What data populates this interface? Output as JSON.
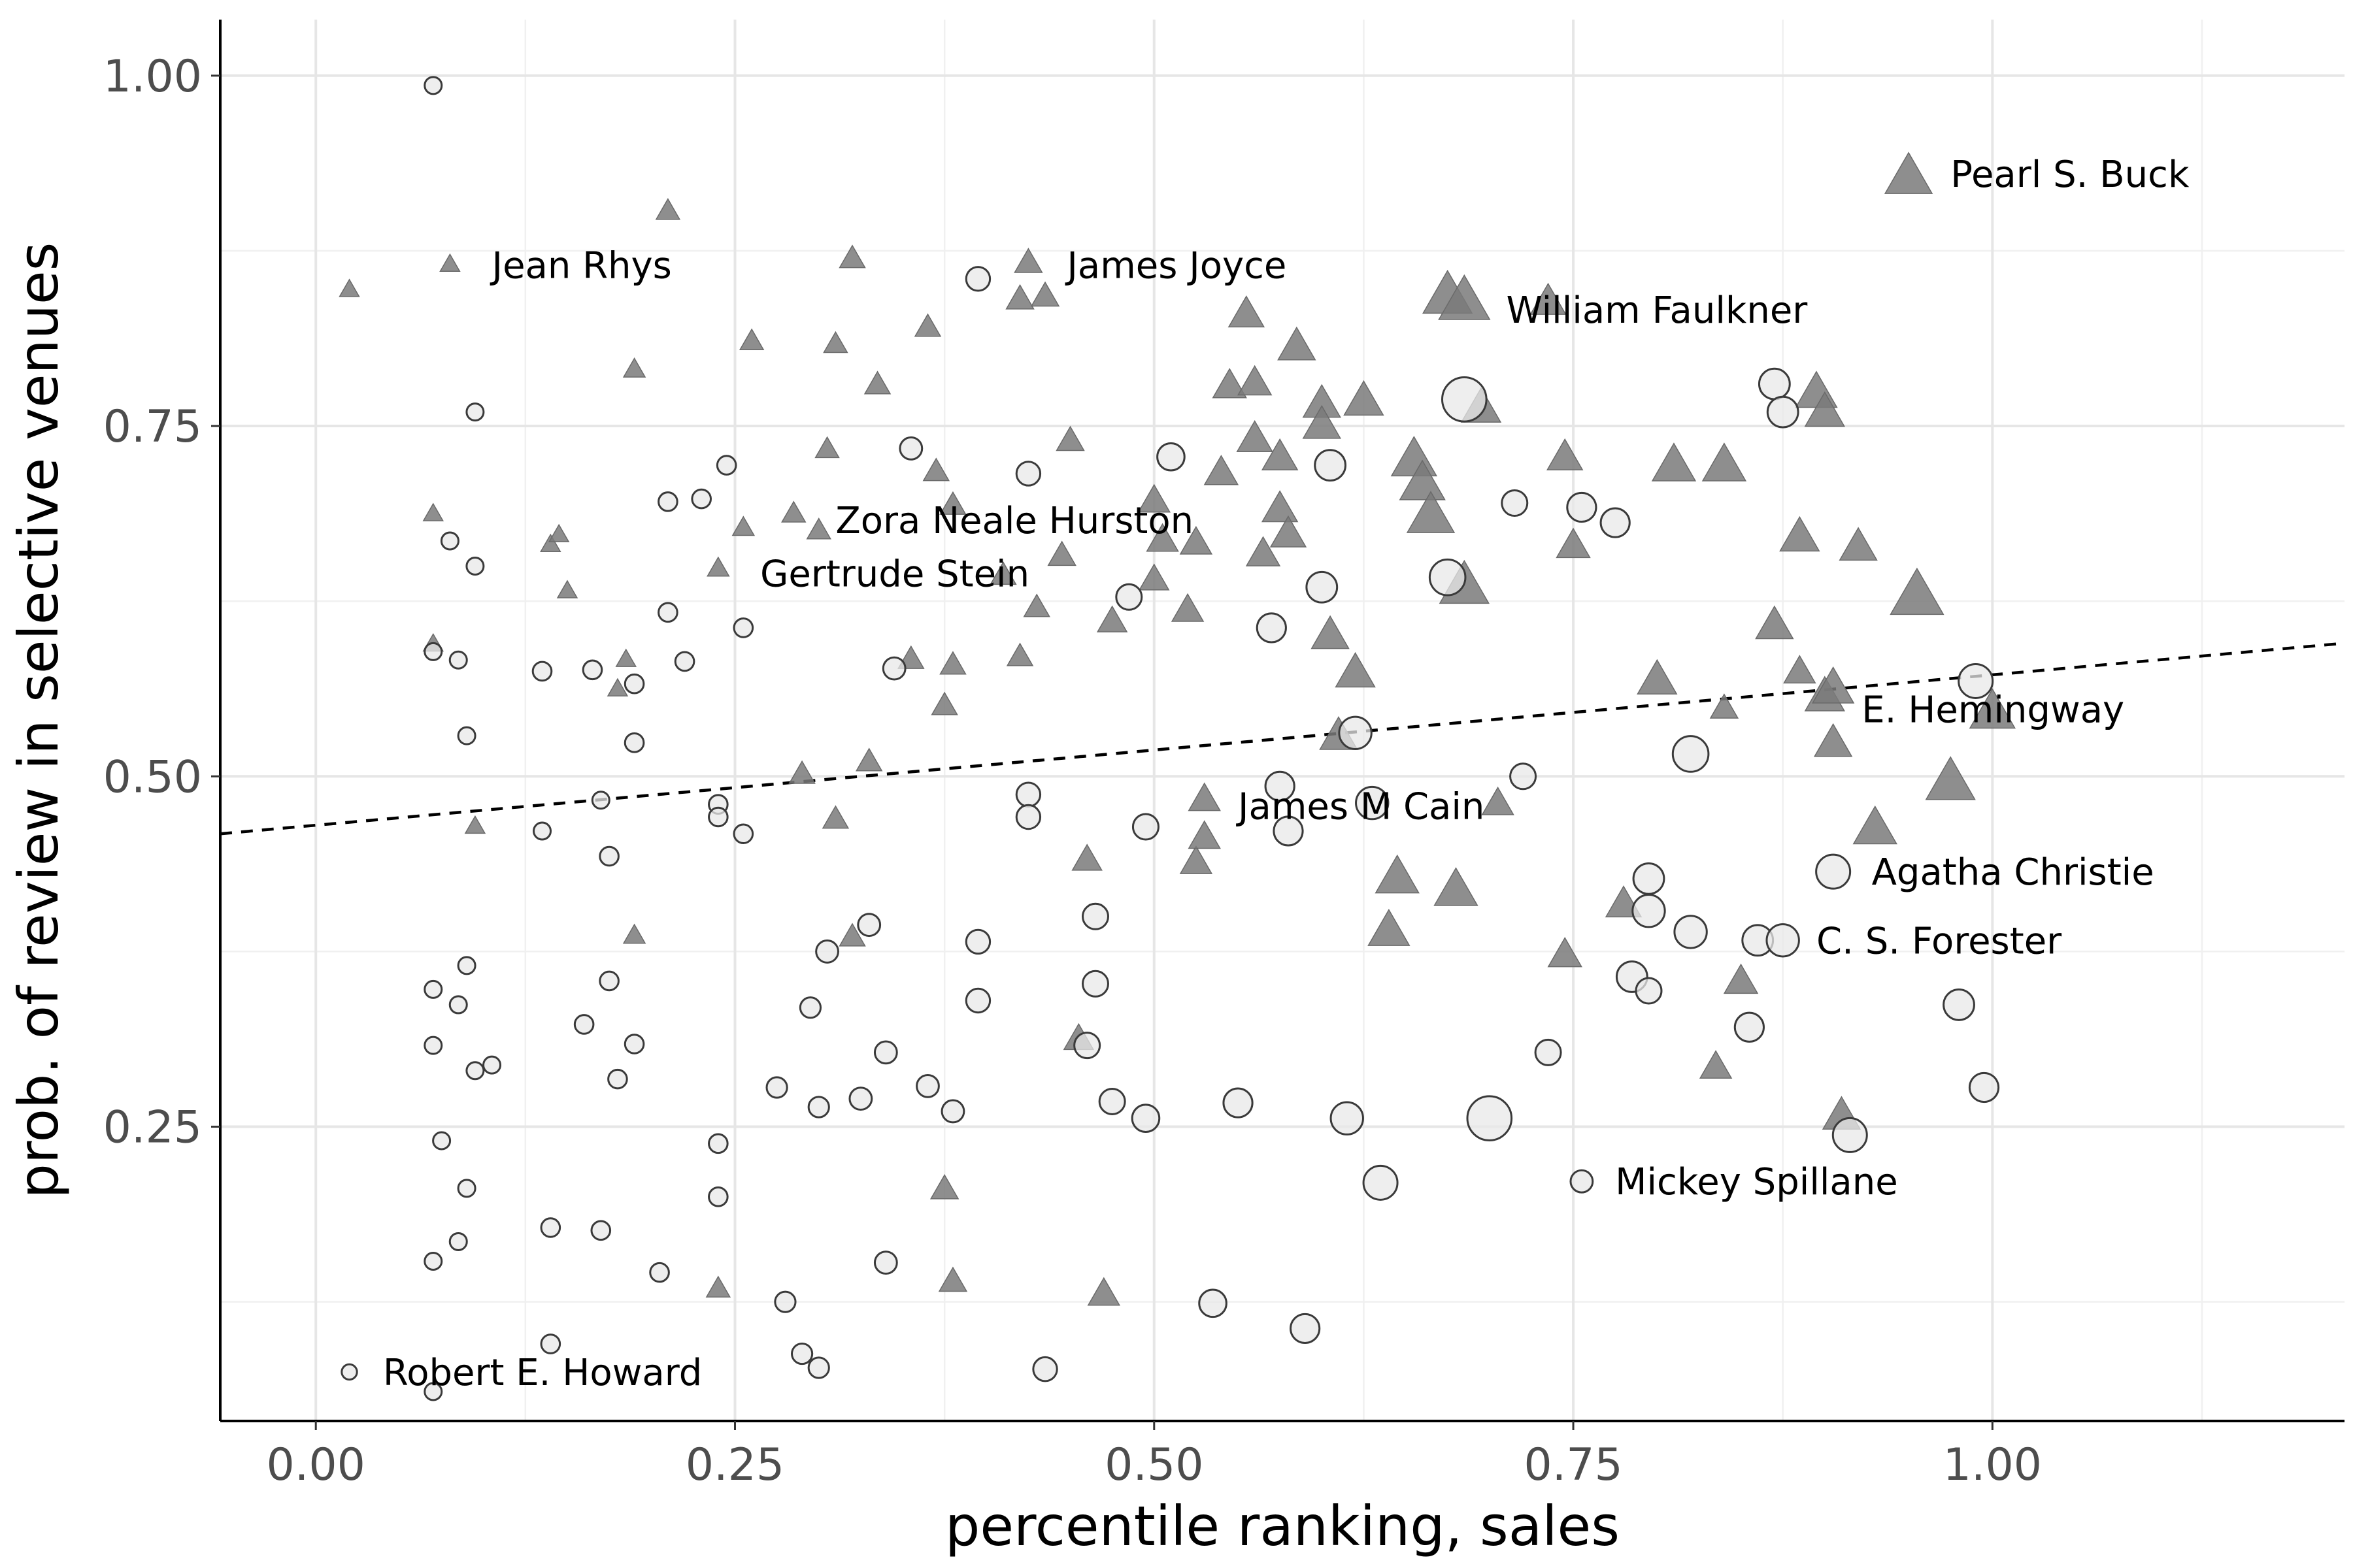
{
  "chart_data": {
    "type": "scatter",
    "title": "",
    "xlabel": "percentile ranking, sales",
    "ylabel": "prob. of review in selective venues",
    "xlim": [
      -0.057,
      1.21
    ],
    "ylim": [
      0.04,
      1.04
    ],
    "x_ticks": [
      0.0,
      0.25,
      0.5,
      0.75,
      1.0
    ],
    "x_tick_labels": [
      "0.00",
      "0.25",
      "0.50",
      "0.75",
      "1.00"
    ],
    "y_ticks": [
      0.25,
      0.5,
      0.75,
      1.0
    ],
    "y_tick_labels": [
      "0.25",
      "0.50",
      "0.75",
      "1.00"
    ],
    "grid": true,
    "legend": "none",
    "colors": {
      "triangle": "#7a7a7a",
      "circle": "#e8e8e8",
      "circle_stroke": "#3a3a3a",
      "trend": "#000000"
    },
    "trend_line": {
      "style": "dashed",
      "x": [
        -0.057,
        1.21
      ],
      "y": [
        0.459,
        0.595
      ]
    },
    "series": [
      {
        "marker": "triangle",
        "points": [
          [
            0.02,
            0.847,
            1
          ],
          [
            0.08,
            0.865,
            1
          ],
          [
            0.21,
            0.903,
            1.2
          ],
          [
            0.19,
            0.79,
            1.1
          ],
          [
            0.07,
            0.687,
            1
          ],
          [
            0.07,
            0.594,
            1
          ],
          [
            0.14,
            0.665,
            1
          ],
          [
            0.145,
            0.672,
            1
          ],
          [
            0.15,
            0.632,
            1
          ],
          [
            0.18,
            0.562,
            1
          ],
          [
            0.185,
            0.583,
            1
          ],
          [
            0.095,
            0.464,
            1
          ],
          [
            0.19,
            0.386,
            1.1
          ],
          [
            0.24,
            0.648,
            1.1
          ],
          [
            0.255,
            0.677,
            1.1
          ],
          [
            0.26,
            0.81,
            1.2
          ],
          [
            0.285,
            0.687,
            1.2
          ],
          [
            0.3,
            0.675,
            1.2
          ],
          [
            0.305,
            0.733,
            1.2
          ],
          [
            0.31,
            0.808,
            1.2
          ],
          [
            0.32,
            0.869,
            1.3
          ],
          [
            0.335,
            0.779,
            1.3
          ],
          [
            0.365,
            0.82,
            1.3
          ],
          [
            0.37,
            0.717,
            1.3
          ],
          [
            0.38,
            0.693,
            1.3
          ],
          [
            0.355,
            0.583,
            1.3
          ],
          [
            0.38,
            0.579,
            1.3
          ],
          [
            0.375,
            0.55,
            1.3
          ],
          [
            0.41,
            0.643,
            1.3
          ],
          [
            0.43,
            0.62,
            1.3
          ],
          [
            0.42,
            0.585,
            1.3
          ],
          [
            0.445,
            0.657,
            1.4
          ],
          [
            0.45,
            0.739,
            1.4
          ],
          [
            0.42,
            0.84,
            1.4
          ],
          [
            0.425,
            0.866,
            1.4
          ],
          [
            0.435,
            0.842,
            1.4
          ],
          [
            0.29,
            0.501,
            1.3
          ],
          [
            0.33,
            0.51,
            1.3
          ],
          [
            0.31,
            0.469,
            1.3
          ],
          [
            0.32,
            0.385,
            1.3
          ],
          [
            0.46,
            0.44,
            1.5
          ],
          [
            0.455,
            0.312,
            1.5
          ],
          [
            0.375,
            0.205,
            1.4
          ],
          [
            0.38,
            0.139,
            1.4
          ],
          [
            0.24,
            0.134,
            1.2
          ],
          [
            0.47,
            0.13,
            1.6
          ],
          [
            0.475,
            0.61,
            1.5
          ],
          [
            0.5,
            0.64,
            1.5
          ],
          [
            0.5,
            0.696,
            1.6
          ],
          [
            0.505,
            0.668,
            1.6
          ],
          [
            0.52,
            0.618,
            1.6
          ],
          [
            0.525,
            0.666,
            1.6
          ],
          [
            0.53,
            0.483,
            1.6
          ],
          [
            0.525,
            0.438,
            1.6
          ],
          [
            0.53,
            0.456,
            1.6
          ],
          [
            0.54,
            0.716,
            1.7
          ],
          [
            0.545,
            0.778,
            1.7
          ],
          [
            0.555,
            0.829,
            1.8
          ],
          [
            0.56,
            0.78,
            1.7
          ],
          [
            0.56,
            0.74,
            1.8
          ],
          [
            0.565,
            0.658,
            1.7
          ],
          [
            0.575,
            0.727,
            1.8
          ],
          [
            0.575,
            0.69,
            1.8
          ],
          [
            0.58,
            0.672,
            1.8
          ],
          [
            0.585,
            0.806,
            1.9
          ],
          [
            0.6,
            0.765,
            1.9
          ],
          [
            0.6,
            0.75,
            1.9
          ],
          [
            0.605,
            0.6,
            1.9
          ],
          [
            0.61,
            0.528,
            1.9
          ],
          [
            0.62,
            0.573,
            2
          ],
          [
            0.625,
            0.767,
            2
          ],
          [
            0.64,
            0.389,
            2.1
          ],
          [
            0.645,
            0.427,
            2.2
          ],
          [
            0.655,
            0.725,
            2.3
          ],
          [
            0.66,
            0.708,
            2.3
          ],
          [
            0.665,
            0.685,
            2.4
          ],
          [
            0.675,
            0.842,
            2.5
          ],
          [
            0.685,
            0.838,
            2.6
          ],
          [
            0.685,
            0.635,
            2.5
          ],
          [
            0.68,
            0.418,
            2.2
          ],
          [
            0.695,
            0.762,
            2
          ],
          [
            0.705,
            0.48,
            1.6
          ],
          [
            0.735,
            0.838,
            1.8
          ],
          [
            0.745,
            0.727,
            1.8
          ],
          [
            0.75,
            0.664,
            1.7
          ],
          [
            0.745,
            0.372,
            1.7
          ],
          [
            0.78,
            0.408,
            1.8
          ],
          [
            0.8,
            0.568,
            2
          ],
          [
            0.81,
            0.721,
            2.2
          ],
          [
            0.84,
            0.721,
            2.2
          ],
          [
            0.835,
            0.292,
            1.6
          ],
          [
            0.84,
            0.548,
            1.4
          ],
          [
            0.85,
            0.353,
            1.7
          ],
          [
            0.87,
            0.607,
            1.9
          ],
          [
            0.885,
            0.574,
            1.6
          ],
          [
            0.885,
            0.67,
            2
          ],
          [
            0.895,
            0.773,
            2.1
          ],
          [
            0.9,
            0.759,
            2
          ],
          [
            0.9,
            0.556,
            2
          ],
          [
            0.905,
            0.562,
            2.1
          ],
          [
            0.905,
            0.523,
            1.9
          ],
          [
            0.91,
            0.257,
            1.9
          ],
          [
            0.92,
            0.663,
            1.9
          ],
          [
            0.93,
            0.462,
            2.2
          ],
          [
            0.95,
            0.927,
            2.4
          ],
          [
            0.955,
            0.628,
            2.7
          ],
          [
            0.975,
            0.495,
            2.5
          ],
          [
            1.0,
            0.545,
            2.3
          ]
        ]
      },
      {
        "marker": "circle",
        "points": [
          [
            0.07,
            0.993,
            1
          ],
          [
            0.095,
            0.76,
            1
          ],
          [
            0.08,
            0.668,
            1
          ],
          [
            0.095,
            0.65,
            1
          ],
          [
            0.07,
            0.589,
            1
          ],
          [
            0.085,
            0.583,
            1
          ],
          [
            0.09,
            0.529,
            1
          ],
          [
            0.135,
            0.575,
            1.1
          ],
          [
            0.165,
            0.576,
            1.1
          ],
          [
            0.19,
            0.566,
            1.1
          ],
          [
            0.21,
            0.617,
            1.1
          ],
          [
            0.21,
            0.696,
            1.1
          ],
          [
            0.23,
            0.698,
            1.1
          ],
          [
            0.245,
            0.722,
            1.1
          ],
          [
            0.255,
            0.606,
            1.1
          ],
          [
            0.22,
            0.582,
            1.1
          ],
          [
            0.19,
            0.524,
            1.1
          ],
          [
            0.17,
            0.483,
            1
          ],
          [
            0.135,
            0.461,
            1
          ],
          [
            0.175,
            0.443,
            1.1
          ],
          [
            0.24,
            0.48,
            1.1
          ],
          [
            0.24,
            0.471,
            1.1
          ],
          [
            0.255,
            0.459,
            1.1
          ],
          [
            0.09,
            0.365,
            1
          ],
          [
            0.07,
            0.348,
            1
          ],
          [
            0.085,
            0.337,
            1
          ],
          [
            0.07,
            0.308,
            1
          ],
          [
            0.095,
            0.29,
            1
          ],
          [
            0.105,
            0.294,
            1
          ],
          [
            0.175,
            0.354,
            1.1
          ],
          [
            0.16,
            0.323,
            1.1
          ],
          [
            0.19,
            0.309,
            1.1
          ],
          [
            0.18,
            0.284,
            1.1
          ],
          [
            0.075,
            0.24,
            1
          ],
          [
            0.09,
            0.206,
            1
          ],
          [
            0.085,
            0.168,
            1
          ],
          [
            0.07,
            0.154,
            1
          ],
          [
            0.14,
            0.178,
            1.1
          ],
          [
            0.17,
            0.176,
            1.1
          ],
          [
            0.205,
            0.146,
            1.1
          ],
          [
            0.24,
            0.238,
            1.1
          ],
          [
            0.24,
            0.2,
            1.1
          ],
          [
            0.02,
            0.075,
            0.9
          ],
          [
            0.07,
            0.061,
            1
          ],
          [
            0.14,
            0.095,
            1.1
          ],
          [
            0.275,
            0.278,
            1.2
          ],
          [
            0.28,
            0.125,
            1.2
          ],
          [
            0.29,
            0.088,
            1.2
          ],
          [
            0.3,
            0.078,
            1.2
          ],
          [
            0.3,
            0.264,
            1.2
          ],
          [
            0.295,
            0.335,
            1.2
          ],
          [
            0.305,
            0.375,
            1.3
          ],
          [
            0.33,
            0.394,
            1.3
          ],
          [
            0.325,
            0.27,
            1.3
          ],
          [
            0.34,
            0.303,
            1.3
          ],
          [
            0.34,
            0.153,
            1.3
          ],
          [
            0.345,
            0.577,
            1.3
          ],
          [
            0.355,
            0.734,
            1.3
          ],
          [
            0.365,
            0.279,
            1.3
          ],
          [
            0.38,
            0.261,
            1.3
          ],
          [
            0.395,
            0.382,
            1.4
          ],
          [
            0.395,
            0.34,
            1.4
          ],
          [
            0.395,
            0.855,
            1.4
          ],
          [
            0.425,
            0.716,
            1.4
          ],
          [
            0.425,
            0.487,
            1.4
          ],
          [
            0.425,
            0.471,
            1.4
          ],
          [
            0.435,
            0.077,
            1.4
          ],
          [
            0.46,
            0.308,
            1.5
          ],
          [
            0.465,
            0.4,
            1.5
          ],
          [
            0.465,
            0.352,
            1.5
          ],
          [
            0.475,
            0.268,
            1.5
          ],
          [
            0.485,
            0.628,
            1.5
          ],
          [
            0.495,
            0.464,
            1.5
          ],
          [
            0.495,
            0.256,
            1.6
          ],
          [
            0.51,
            0.728,
            1.6
          ],
          [
            0.535,
            0.124,
            1.6
          ],
          [
            0.55,
            0.267,
            1.7
          ],
          [
            0.57,
            0.606,
            1.7
          ],
          [
            0.575,
            0.493,
            1.7
          ],
          [
            0.58,
            0.461,
            1.7
          ],
          [
            0.59,
            0.106,
            1.7
          ],
          [
            0.6,
            0.635,
            1.8
          ],
          [
            0.605,
            0.722,
            1.8
          ],
          [
            0.615,
            0.256,
            1.9
          ],
          [
            0.62,
            0.531,
            1.9
          ],
          [
            0.63,
            0.481,
            1.9
          ],
          [
            0.635,
            0.21,
            2
          ],
          [
            0.675,
            0.642,
            2.1
          ],
          [
            0.685,
            0.769,
            2.6
          ],
          [
            0.7,
            0.256,
            2.6
          ],
          [
            0.715,
            0.695,
            1.5
          ],
          [
            0.72,
            0.5,
            1.5
          ],
          [
            0.735,
            0.303,
            1.5
          ],
          [
            0.755,
            0.692,
            1.7
          ],
          [
            0.755,
            0.211,
            1.3
          ],
          [
            0.775,
            0.681,
            1.7
          ],
          [
            0.785,
            0.357,
            1.8
          ],
          [
            0.795,
            0.347,
            1.5
          ],
          [
            0.795,
            0.427,
            1.8
          ],
          [
            0.795,
            0.404,
            1.9
          ],
          [
            0.82,
            0.389,
            1.9
          ],
          [
            0.82,
            0.516,
            2.1
          ],
          [
            0.855,
            0.321,
            1.7
          ],
          [
            0.86,
            0.383,
            1.8
          ],
          [
            0.87,
            0.78,
            1.8
          ],
          [
            0.875,
            0.76,
            1.8
          ],
          [
            0.875,
            0.383,
            1.9
          ],
          [
            0.905,
            0.432,
            2
          ],
          [
            0.915,
            0.244,
            2
          ],
          [
            0.98,
            0.337,
            1.8
          ],
          [
            0.99,
            0.568,
            2
          ],
          [
            0.995,
            0.278,
            1.7
          ]
        ]
      }
    ],
    "annotations": [
      {
        "text": "Pearl S. Buck",
        "x": 0.975,
        "y": 0.93
      },
      {
        "text": "Jean Rhys",
        "x": 0.105,
        "y": 0.865
      },
      {
        "text": "James Joyce",
        "x": 0.448,
        "y": 0.865
      },
      {
        "text": "William Faulkner",
        "x": 0.71,
        "y": 0.833
      },
      {
        "text": "Zora Neale Hurston",
        "x": 0.31,
        "y": 0.683
      },
      {
        "text": "Gertrude Stein",
        "x": 0.265,
        "y": 0.645
      },
      {
        "text": "E. Hemingway",
        "x": 0.922,
        "y": 0.548
      },
      {
        "text": "James M Cain",
        "x": 0.55,
        "y": 0.479
      },
      {
        "text": "Agatha Christie",
        "x": 0.928,
        "y": 0.432
      },
      {
        "text": "C. S. Forester",
        "x": 0.895,
        "y": 0.383
      },
      {
        "text": "Mickey Spillane",
        "x": 0.775,
        "y": 0.211
      },
      {
        "text": "Robert E. Howard",
        "x": 0.04,
        "y": 0.075
      }
    ]
  }
}
